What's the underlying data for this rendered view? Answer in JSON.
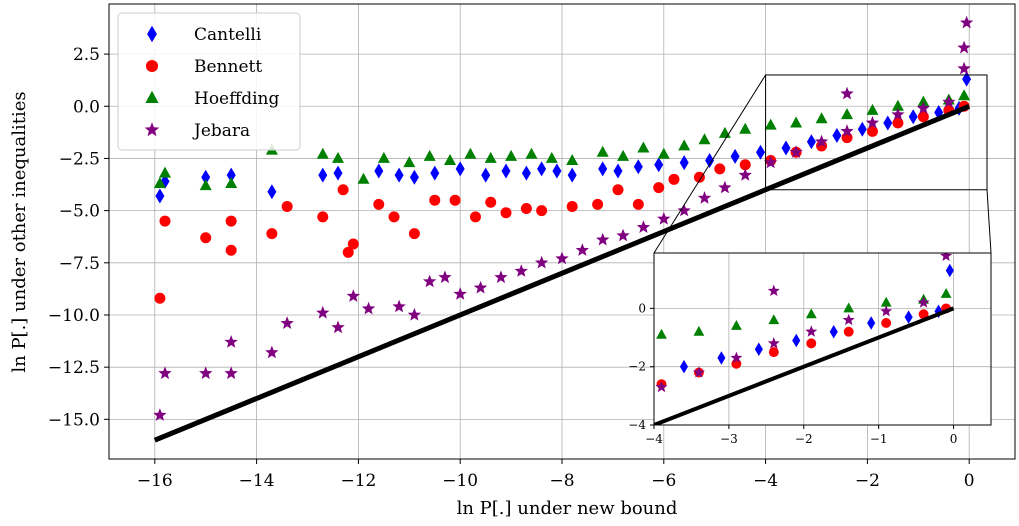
{
  "chart_data": {
    "type": "scatter",
    "title": "",
    "xlabel": "ln P[.] under new bound",
    "ylabel": "ln P[.] under other inequalities",
    "xlim": [
      -16.9,
      0.9
    ],
    "ylim": [
      -16.9,
      4.9
    ],
    "xticks": [
      -16,
      -14,
      -12,
      -10,
      -8,
      -6,
      -4,
      -2,
      0
    ],
    "yticks": [
      -15.0,
      -12.5,
      -10.0,
      -7.5,
      -5.0,
      -2.5,
      0.0,
      2.5
    ],
    "xtick_labels": [
      "−16",
      "−14",
      "−12",
      "−10",
      "−8",
      "−6",
      "−4",
      "−2",
      "0"
    ],
    "ytick_labels": [
      "−15.0",
      "−12.5",
      "−10.0",
      "−7.5",
      "−5.0",
      "−2.5",
      "0.0",
      "2.5"
    ],
    "grid": true,
    "legend_position": "top-left",
    "reference_line": {
      "x": [
        -16,
        0
      ],
      "y": [
        -16,
        0
      ],
      "color": "#000000"
    },
    "series": [
      {
        "name": "Cantelli",
        "marker": "diamond",
        "color": "#0000ff",
        "points": [
          [
            -15.9,
            -4.3
          ],
          [
            -15.8,
            -3.6
          ],
          [
            -15.0,
            -3.4
          ],
          [
            -14.5,
            -3.3
          ],
          [
            -13.7,
            -4.1
          ],
          [
            -12.7,
            -3.3
          ],
          [
            -12.4,
            -3.2
          ],
          [
            -11.6,
            -3.1
          ],
          [
            -11.2,
            -3.3
          ],
          [
            -10.9,
            -3.4
          ],
          [
            -10.5,
            -3.2
          ],
          [
            -10.0,
            -3.0
          ],
          [
            -9.5,
            -3.3
          ],
          [
            -9.1,
            -3.1
          ],
          [
            -8.7,
            -3.2
          ],
          [
            -8.4,
            -3.0
          ],
          [
            -8.1,
            -3.1
          ],
          [
            -7.8,
            -3.3
          ],
          [
            -7.2,
            -3.0
          ],
          [
            -6.9,
            -3.1
          ],
          [
            -6.5,
            -2.9
          ],
          [
            -6.1,
            -2.8
          ],
          [
            -5.6,
            -2.7
          ],
          [
            -5.1,
            -2.6
          ],
          [
            -4.6,
            -2.4
          ],
          [
            -4.1,
            -2.2
          ],
          [
            -3.6,
            -2.0
          ],
          [
            -3.1,
            -1.7
          ],
          [
            -2.6,
            -1.4
          ],
          [
            -2.1,
            -1.1
          ],
          [
            -1.6,
            -0.8
          ],
          [
            -1.1,
            -0.5
          ],
          [
            -0.6,
            -0.3
          ],
          [
            -0.2,
            -0.1
          ],
          [
            -0.05,
            1.3
          ]
        ]
      },
      {
        "name": "Bennett",
        "marker": "circle",
        "color": "#ff0000",
        "points": [
          [
            -15.9,
            -9.2
          ],
          [
            -15.8,
            -5.5
          ],
          [
            -15.0,
            -6.3
          ],
          [
            -14.5,
            -6.9
          ],
          [
            -14.5,
            -5.5
          ],
          [
            -13.7,
            -6.1
          ],
          [
            -13.4,
            -4.8
          ],
          [
            -12.7,
            -5.3
          ],
          [
            -12.3,
            -4.0
          ],
          [
            -12.1,
            -6.6
          ],
          [
            -12.2,
            -7.0
          ],
          [
            -11.6,
            -4.7
          ],
          [
            -11.3,
            -5.3
          ],
          [
            -10.9,
            -6.1
          ],
          [
            -10.5,
            -4.5
          ],
          [
            -10.1,
            -4.5
          ],
          [
            -9.7,
            -5.3
          ],
          [
            -9.4,
            -4.6
          ],
          [
            -9.1,
            -5.1
          ],
          [
            -8.7,
            -4.9
          ],
          [
            -8.4,
            -5.0
          ],
          [
            -7.8,
            -4.8
          ],
          [
            -7.3,
            -4.7
          ],
          [
            -6.9,
            -4.0
          ],
          [
            -6.5,
            -4.7
          ],
          [
            -6.1,
            -3.9
          ],
          [
            -5.8,
            -3.5
          ],
          [
            -5.3,
            -3.4
          ],
          [
            -4.9,
            -3.0
          ],
          [
            -4.4,
            -2.8
          ],
          [
            -3.9,
            -2.6
          ],
          [
            -3.4,
            -2.2
          ],
          [
            -2.9,
            -1.9
          ],
          [
            -2.4,
            -1.5
          ],
          [
            -1.9,
            -1.2
          ],
          [
            -1.4,
            -0.8
          ],
          [
            -0.9,
            -0.5
          ],
          [
            -0.4,
            -0.2
          ],
          [
            -0.1,
            0.0
          ]
        ]
      },
      {
        "name": "Hoeffding",
        "marker": "triangle",
        "color": "#008000",
        "points": [
          [
            -15.9,
            -3.7
          ],
          [
            -15.8,
            -3.2
          ],
          [
            -15.0,
            -3.8
          ],
          [
            -14.5,
            -3.7
          ],
          [
            -13.7,
            -2.1
          ],
          [
            -12.7,
            -2.3
          ],
          [
            -12.4,
            -2.5
          ],
          [
            -11.9,
            -3.5
          ],
          [
            -11.5,
            -2.5
          ],
          [
            -11.0,
            -2.7
          ],
          [
            -10.6,
            -2.4
          ],
          [
            -10.2,
            -2.6
          ],
          [
            -9.8,
            -2.3
          ],
          [
            -9.4,
            -2.5
          ],
          [
            -9.0,
            -2.4
          ],
          [
            -8.6,
            -2.3
          ],
          [
            -8.2,
            -2.5
          ],
          [
            -7.8,
            -2.6
          ],
          [
            -7.2,
            -2.2
          ],
          [
            -6.8,
            -2.4
          ],
          [
            -6.4,
            -2.0
          ],
          [
            -6.0,
            -2.3
          ],
          [
            -5.6,
            -1.9
          ],
          [
            -5.2,
            -1.6
          ],
          [
            -4.8,
            -1.3
          ],
          [
            -4.4,
            -1.1
          ],
          [
            -3.9,
            -0.9
          ],
          [
            -3.4,
            -0.8
          ],
          [
            -2.9,
            -0.6
          ],
          [
            -2.4,
            -0.4
          ],
          [
            -1.9,
            -0.2
          ],
          [
            -1.4,
            0.0
          ],
          [
            -0.9,
            0.2
          ],
          [
            -0.4,
            0.3
          ],
          [
            -0.1,
            0.5
          ]
        ]
      },
      {
        "name": "Jebara",
        "marker": "star",
        "color": "#800080",
        "points": [
          [
            -15.9,
            -14.8
          ],
          [
            -15.8,
            -12.8
          ],
          [
            -15.0,
            -12.8
          ],
          [
            -14.5,
            -12.8
          ],
          [
            -14.5,
            -11.3
          ],
          [
            -13.7,
            -11.8
          ],
          [
            -13.4,
            -10.4
          ],
          [
            -12.7,
            -9.9
          ],
          [
            -12.4,
            -10.6
          ],
          [
            -12.1,
            -9.1
          ],
          [
            -11.8,
            -9.7
          ],
          [
            -11.2,
            -9.6
          ],
          [
            -10.9,
            -10.0
          ],
          [
            -10.6,
            -8.4
          ],
          [
            -10.3,
            -8.2
          ],
          [
            -10.0,
            -9.0
          ],
          [
            -9.6,
            -8.7
          ],
          [
            -9.2,
            -8.2
          ],
          [
            -8.8,
            -7.9
          ],
          [
            -8.4,
            -7.5
          ],
          [
            -8.0,
            -7.3
          ],
          [
            -7.6,
            -6.9
          ],
          [
            -7.2,
            -6.4
          ],
          [
            -6.8,
            -6.2
          ],
          [
            -6.4,
            -5.8
          ],
          [
            -6.0,
            -5.4
          ],
          [
            -5.6,
            -5.0
          ],
          [
            -5.2,
            -4.4
          ],
          [
            -4.8,
            -3.9
          ],
          [
            -4.4,
            -3.3
          ],
          [
            -3.9,
            -2.7
          ],
          [
            -3.4,
            -2.2
          ],
          [
            -2.9,
            -1.7
          ],
          [
            -2.4,
            -1.2
          ],
          [
            -1.9,
            -0.8
          ],
          [
            -1.4,
            -0.4
          ],
          [
            -0.9,
            -0.1
          ],
          [
            -0.4,
            0.2
          ],
          [
            -2.4,
            0.6
          ],
          [
            -0.1,
            2.8
          ],
          [
            -0.05,
            4.0
          ],
          [
            -0.1,
            1.8
          ]
        ]
      }
    ],
    "inset": {
      "xlim": [
        -4.0,
        0.5
      ],
      "ylim": [
        -4.0,
        1.9
      ],
      "xticks": [
        -4,
        -3,
        -2,
        -1,
        0
      ],
      "yticks": [
        -4,
        -2,
        0
      ],
      "xtick_labels": [
        "−4",
        "−3",
        "−2",
        "−1",
        "0"
      ],
      "ytick_labels": [
        "−4",
        "−2",
        "0"
      ],
      "grid": true,
      "zoom_region_x": [
        -4.0,
        0.35
      ],
      "zoom_region_y": [
        -4.0,
        1.5
      ]
    }
  }
}
